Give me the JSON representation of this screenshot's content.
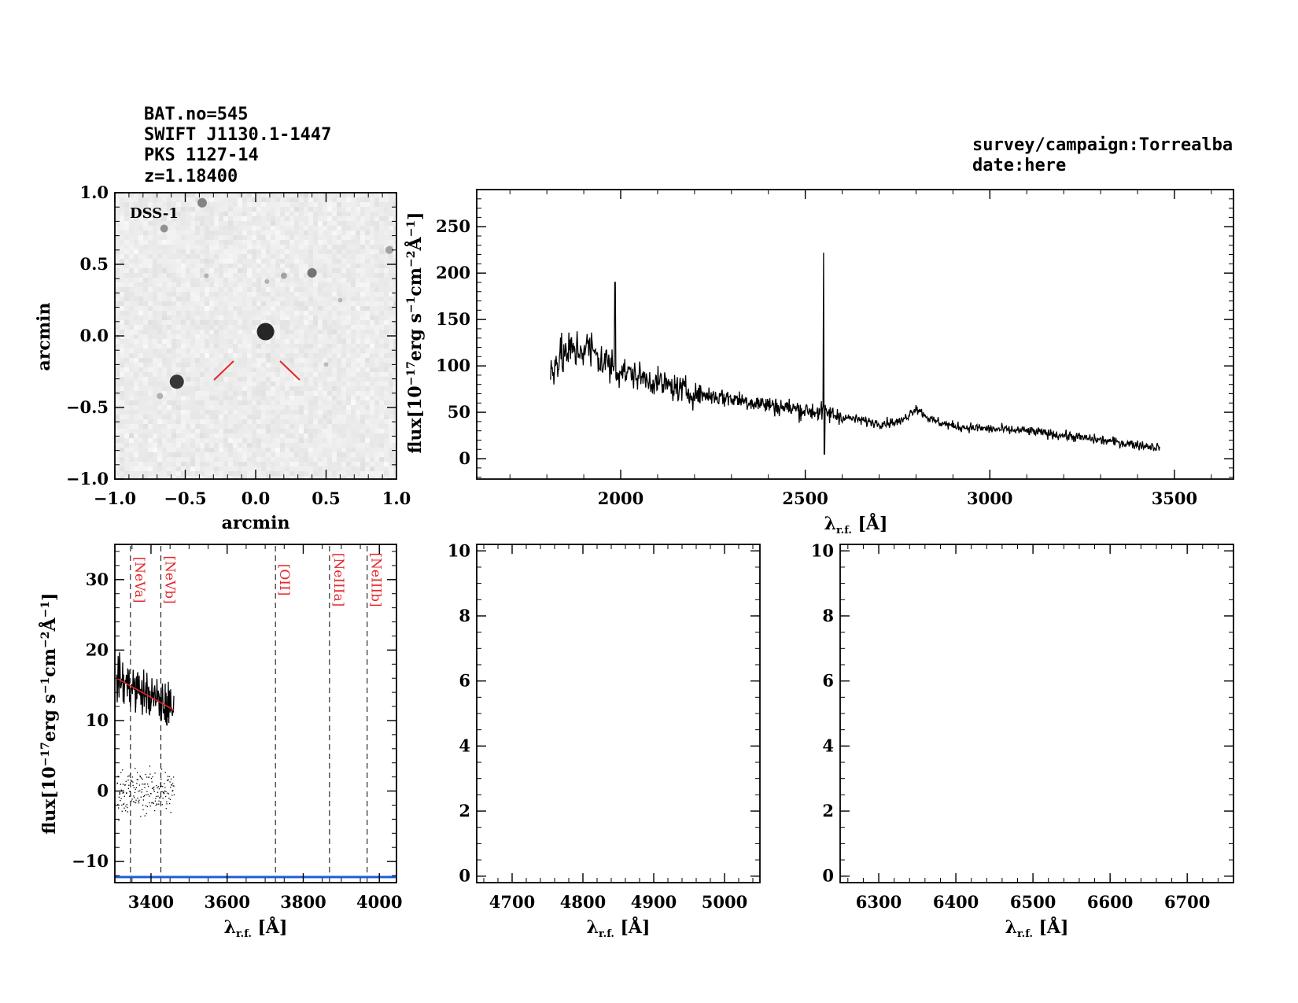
{
  "header": {
    "bat_no": "BAT.no=545",
    "swift_name": "SWIFT J1130.1-1447",
    "alt_name": "PKS 1127-14",
    "redshift": "z=1.18400",
    "survey": "survey/campaign:Torrealba",
    "date": "date:here"
  },
  "colors": {
    "spectrum": "#000000",
    "marker": "#e3262a",
    "continuum_fit": "#e3262a",
    "baseline": "#1f5fd6",
    "line_label": "#e3262a"
  },
  "image_panel": {
    "survey_label": "DSS-1",
    "xlabel": "arcmin",
    "ylabel": "arcmin",
    "xlim": [
      -1.0,
      1.0
    ],
    "ylim": [
      -1.0,
      1.0
    ],
    "x_ticks": [
      "−1.0",
      "−0.5",
      "0.0",
      "0.5",
      "1.0"
    ],
    "y_ticks": [
      "−1.0",
      "−0.5",
      "0.0",
      "0.5",
      "1.0"
    ]
  },
  "chart_data": [
    {
      "type": "line",
      "id": "full-spectrum",
      "title": "",
      "xlabel": "λ_r.f. [Å]",
      "ylabel": "flux[10⁻¹⁷erg s⁻¹cm⁻²Å⁻¹]",
      "xlim": [
        1610,
        3660
      ],
      "ylim": [
        -22,
        290
      ],
      "x_ticks": [
        "2000",
        "2500",
        "3000",
        "3500"
      ],
      "y_ticks": [
        "0",
        "50",
        "100",
        "150",
        "200",
        "250"
      ],
      "continuum_anchors": {
        "x": [
          1810,
          1860,
          1910,
          1950,
          2000,
          2100,
          2200,
          2300,
          2400,
          2500,
          2550,
          2600,
          2700,
          2760,
          2800,
          2840,
          2900,
          3000,
          3100,
          3200,
          3300,
          3400,
          3460
        ],
        "y": [
          100,
          115,
          120,
          105,
          95,
          82,
          70,
          65,
          58,
          52,
          50,
          45,
          38,
          40,
          55,
          42,
          35,
          32,
          30,
          25,
          20,
          15,
          12
        ]
      },
      "emission_spikes": [
        {
          "x": 1985,
          "y": 190
        },
        {
          "x": 2550,
          "y": 222
        }
      ],
      "absorption_dip": {
        "x": 2552,
        "y": 5
      }
    },
    {
      "type": "line",
      "id": "zoom-neV-oII-neIII",
      "xlabel": "λ_r.f. [Å]",
      "ylabel": "flux[10⁻¹⁷erg s⁻¹cm⁻²Å⁻¹]",
      "xlim": [
        3305,
        4045
      ],
      "ylim": [
        -13,
        35
      ],
      "x_ticks": [
        "3400",
        "3600",
        "3800",
        "4000"
      ],
      "y_ticks": [
        "−10",
        "0",
        "10",
        "20",
        "30"
      ],
      "spectrum_range": [
        3310,
        3460
      ],
      "continuum_fit": {
        "x": [
          3310,
          3460
        ],
        "y": [
          16,
          11.5
        ]
      },
      "baseline_y": -12.2,
      "emission_lines": [
        {
          "label": "[NeVa]",
          "x": 3346
        },
        {
          "label": "[NeVb]",
          "x": 3426
        },
        {
          "label": "[OII]",
          "x": 3727
        },
        {
          "label": "[NeIIIa]",
          "x": 3869
        },
        {
          "label": "[NeIIIb]",
          "x": 3968
        }
      ]
    },
    {
      "type": "line",
      "id": "zoom-hbeta-oIII",
      "xlabel": "λ_r.f. [Å]",
      "ylabel": "",
      "xlim": [
        4650,
        5050
      ],
      "ylim": [
        -0.2,
        10.2
      ],
      "x_ticks": [
        "4700",
        "4800",
        "4900",
        "5000"
      ],
      "y_ticks": [
        "0",
        "2",
        "4",
        "6",
        "8",
        "10"
      ]
    },
    {
      "type": "line",
      "id": "zoom-halpha",
      "xlabel": "λ_r.f. [Å]",
      "ylabel": "",
      "xlim": [
        6250,
        6760
      ],
      "ylim": [
        -0.2,
        10.2
      ],
      "x_ticks": [
        "6300",
        "6400",
        "6500",
        "6600",
        "6700"
      ],
      "y_ticks": [
        "0",
        "2",
        "4",
        "6",
        "8",
        "10"
      ]
    }
  ]
}
